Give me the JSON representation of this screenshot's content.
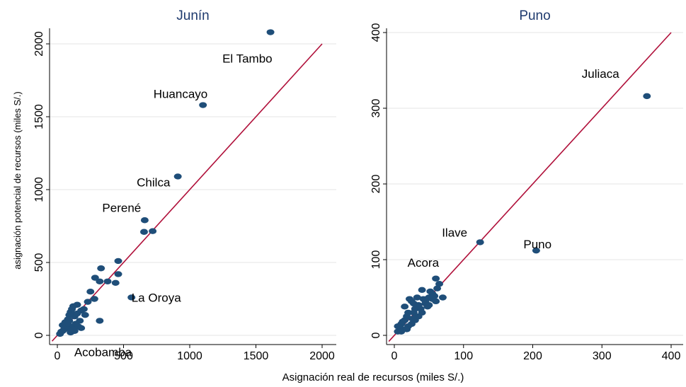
{
  "figure": {
    "xlabel": "Asignación real de recursos (miles S/.)",
    "ylabel": "asignación potencial de recursos (miles S/.)"
  },
  "colors": {
    "point": "#1f4e79",
    "line": "#b0103a",
    "grid": "#e6e6e6",
    "title": "#1e3a6e"
  },
  "chart_data": [
    {
      "type": "scatter",
      "title": "Junín",
      "xlim": [
        0,
        2000
      ],
      "ylim": [
        0,
        2000
      ],
      "xticks": [
        0,
        500,
        1000,
        1500,
        2000
      ],
      "yticks": [
        0,
        500,
        1000,
        1500,
        2000
      ],
      "grid": true,
      "reference_line": "y = x",
      "points": [
        [
          1610,
          2080
        ],
        [
          1100,
          1580
        ],
        [
          910,
          1090
        ],
        [
          660,
          790
        ],
        [
          655,
          710
        ],
        [
          720,
          715
        ],
        [
          560,
          260
        ],
        [
          320,
          100
        ],
        [
          460,
          510
        ],
        [
          330,
          460
        ],
        [
          285,
          395
        ],
        [
          380,
          370
        ],
        [
          440,
          360
        ],
        [
          320,
          370
        ],
        [
          460,
          420
        ],
        [
          250,
          300
        ],
        [
          200,
          180
        ],
        [
          230,
          230
        ],
        [
          180,
          170
        ],
        [
          120,
          200
        ],
        [
          150,
          210
        ],
        [
          100,
          160
        ],
        [
          130,
          130
        ],
        [
          90,
          140
        ],
        [
          80,
          110
        ],
        [
          60,
          90
        ],
        [
          110,
          60
        ],
        [
          140,
          80
        ],
        [
          170,
          100
        ],
        [
          160,
          60
        ],
        [
          70,
          50
        ],
        [
          50,
          40
        ],
        [
          30,
          25
        ],
        [
          100,
          20
        ],
        [
          20,
          10
        ],
        [
          40,
          70
        ],
        [
          180,
          50
        ],
        [
          130,
          30
        ],
        [
          90,
          100
        ],
        [
          60,
          60
        ],
        [
          210,
          140
        ],
        [
          280,
          250
        ],
        [
          110,
          180
        ],
        [
          150,
          150
        ],
        [
          40,
          30
        ],
        [
          120,
          40
        ],
        [
          80,
          80
        ]
      ],
      "annotations": [
        {
          "text": "El Tambo",
          "x": 1610,
          "y": 2080
        },
        {
          "text": "Huancayo",
          "x": 1100,
          "y": 1580
        },
        {
          "text": "Chilca",
          "x": 910,
          "y": 1090
        },
        {
          "text": "Perené",
          "x": 660,
          "y": 790
        },
        {
          "text": "La Oroya",
          "x": 560,
          "y": 260
        },
        {
          "text": "Acobamba",
          "x": 320,
          "y": 100
        }
      ]
    },
    {
      "type": "scatter",
      "title": "Puno",
      "xlim": [
        0,
        400
      ],
      "ylim": [
        0,
        400
      ],
      "xticks": [
        0,
        100,
        200,
        300,
        400
      ],
      "yticks": [
        0,
        100,
        200,
        300,
        400
      ],
      "grid": true,
      "reference_line": "y = x",
      "points": [
        [
          365,
          316
        ],
        [
          124,
          123
        ],
        [
          205,
          112
        ],
        [
          60,
          75
        ],
        [
          65,
          68
        ],
        [
          70,
          50
        ],
        [
          60,
          45
        ],
        [
          55,
          55
        ],
        [
          50,
          50
        ],
        [
          45,
          45
        ],
        [
          40,
          60
        ],
        [
          35,
          40
        ],
        [
          30,
          35
        ],
        [
          25,
          45
        ],
        [
          20,
          30
        ],
        [
          15,
          20
        ],
        [
          10,
          15
        ],
        [
          5,
          5
        ],
        [
          8,
          10
        ],
        [
          12,
          8
        ],
        [
          18,
          25
        ],
        [
          22,
          48
        ],
        [
          28,
          30
        ],
        [
          32,
          25
        ],
        [
          38,
          35
        ],
        [
          42,
          48
        ],
        [
          48,
          38
        ],
        [
          52,
          58
        ],
        [
          58,
          52
        ],
        [
          62,
          62
        ],
        [
          25,
          15
        ],
        [
          30,
          20
        ],
        [
          35,
          25
        ],
        [
          40,
          30
        ],
        [
          15,
          38
        ],
        [
          20,
          12
        ],
        [
          10,
          5
        ],
        [
          5,
          12
        ],
        [
          45,
          42
        ],
        [
          50,
          40
        ],
        [
          55,
          48
        ],
        [
          28,
          42
        ],
        [
          33,
          50
        ],
        [
          12,
          18
        ],
        [
          18,
          8
        ],
        [
          26,
          22
        ]
      ],
      "annotations": [
        {
          "text": "Juliaca",
          "x": 365,
          "y": 316
        },
        {
          "text": "Ilave",
          "x": 124,
          "y": 123
        },
        {
          "text": "Puno",
          "x": 205,
          "y": 112
        },
        {
          "text": "Acora",
          "x": 60,
          "y": 75
        }
      ]
    }
  ]
}
